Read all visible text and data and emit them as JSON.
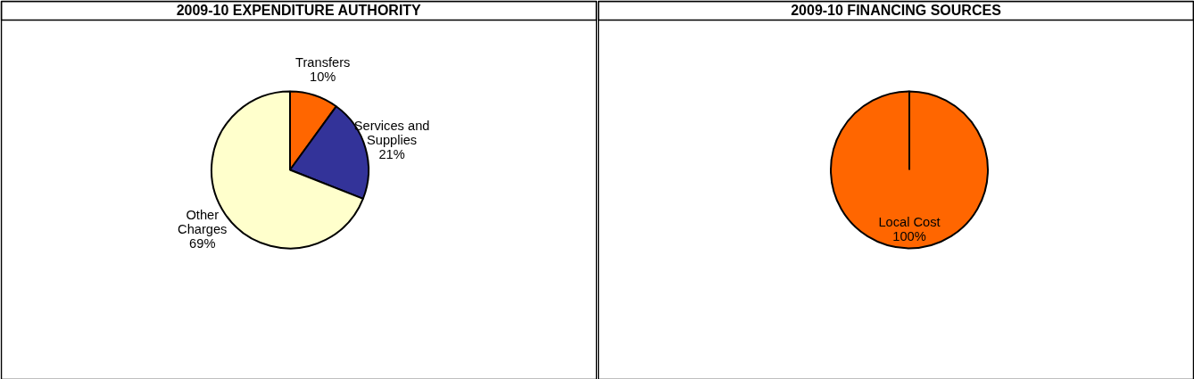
{
  "chart_data": [
    {
      "type": "pie",
      "title": "2009-10 EXPENDITURE AUTHORITY",
      "categories": [
        "Transfers",
        "Services and Supplies",
        "Other Charges"
      ],
      "values": [
        10,
        21,
        69
      ],
      "value_labels": [
        "10%",
        "21%",
        "69%"
      ],
      "colors": [
        "#ff6600",
        "#333399",
        "#ffffcc"
      ]
    },
    {
      "type": "pie",
      "title": "2009-10 FINANCING SOURCES",
      "categories": [
        "Local Cost"
      ],
      "values": [
        100
      ],
      "value_labels": [
        "100%"
      ],
      "colors": [
        "#ff6600"
      ]
    }
  ]
}
